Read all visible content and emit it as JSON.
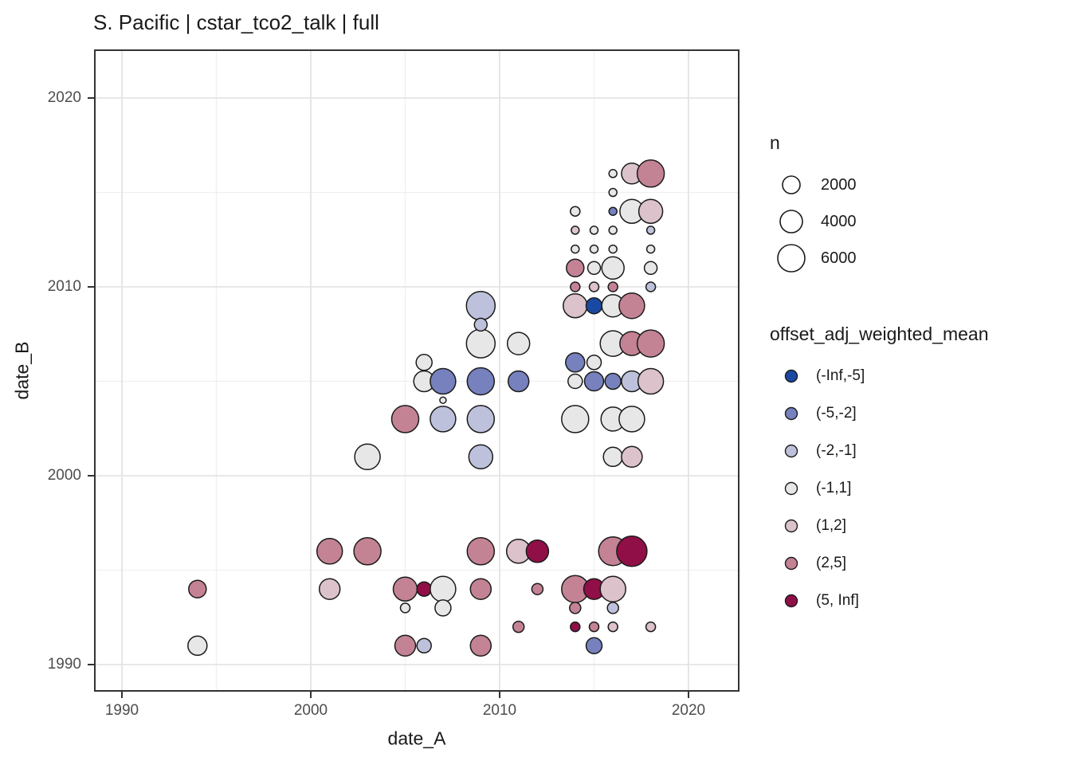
{
  "title": "S. Pacific | cstar_tco2_talk | full",
  "axes": {
    "x_label": "date_A",
    "y_label": "date_B"
  },
  "legend": {
    "size": {
      "title": "n",
      "entries": [
        {
          "label": "2000",
          "r": 11
        },
        {
          "label": "4000",
          "r": 14
        },
        {
          "label": "6000",
          "r": 17
        }
      ]
    },
    "color": {
      "title": "offset_adj_weighted_mean",
      "entries": [
        {
          "label": "(-Inf,-5]",
          "color": "#1a49a4"
        },
        {
          "label": "(-5,-2]",
          "color": "#7681bd"
        },
        {
          "label": "(-2,-1]",
          "color": "#bdc1db"
        },
        {
          "label": "(-1,1]",
          "color": "#e8e7e7"
        },
        {
          "label": "(1,2]",
          "color": "#dcc2ca"
        },
        {
          "label": "(2,5]",
          "color": "#c48394"
        },
        {
          "label": "(5, Inf]",
          "color": "#900f46"
        }
      ]
    }
  },
  "chart_data": {
    "type": "scatter",
    "subtype": "bubble",
    "title": "S. Pacific | cstar_tco2_talk | full",
    "xlabel": "date_A",
    "ylabel": "date_B",
    "x_ticks": [
      1990,
      2000,
      2010,
      2020
    ],
    "y_ticks": [
      2020,
      2010,
      2000,
      1990
    ],
    "x_minor": [
      1995,
      2005,
      2015
    ],
    "y_minor": [
      1995,
      2005,
      2015
    ],
    "xlim": [
      1988.5,
      2022.7
    ],
    "ylim": [
      1988.5,
      2022.6
    ],
    "grid": true,
    "legend_position": "right",
    "size_variable": "n",
    "color_variable": "offset_adj_weighted_mean",
    "color_bins": [
      {
        "label": "(-Inf,-5]",
        "color": "#1a49a4"
      },
      {
        "label": "(-5,-2]",
        "color": "#7681bd"
      },
      {
        "label": "(-2,-1]",
        "color": "#bdc1db"
      },
      {
        "label": "(-1,1]",
        "color": "#e8e7e7"
      },
      {
        "label": "(1,2]",
        "color": "#dcc2ca"
      },
      {
        "label": "(2,5]",
        "color": "#c48394"
      },
      {
        "label": "(5, Inf]",
        "color": "#900f46"
      }
    ],
    "point_fields": [
      "date_A",
      "date_B",
      "color_bin_index",
      "radius_px",
      "n_est"
    ],
    "points": [
      [
        2016,
        2016,
        3,
        5,
        400
      ],
      [
        2017,
        2016,
        4,
        13,
        2800
      ],
      [
        2018,
        2016,
        5,
        17,
        4800
      ],
      [
        2016,
        2015,
        3,
        5,
        400
      ],
      [
        2014,
        2014,
        3,
        6,
        600
      ],
      [
        2016,
        2014,
        1,
        5,
        400
      ],
      [
        2017,
        2014,
        3,
        15,
        3700
      ],
      [
        2018,
        2014,
        4,
        15,
        3700
      ],
      [
        2014,
        2013,
        4,
        5,
        400
      ],
      [
        2015,
        2013,
        3,
        5,
        400
      ],
      [
        2016,
        2013,
        3,
        5,
        400
      ],
      [
        2018,
        2013,
        2,
        5,
        400
      ],
      [
        2014,
        2012,
        3,
        5,
        400
      ],
      [
        2015,
        2012,
        3,
        5,
        400
      ],
      [
        2016,
        2012,
        3,
        5,
        400
      ],
      [
        2018,
        2012,
        3,
        5,
        400
      ],
      [
        2014,
        2011,
        5,
        11,
        2000
      ],
      [
        2015,
        2011,
        3,
        8,
        1100
      ],
      [
        2016,
        2011,
        3,
        14,
        3200
      ],
      [
        2018,
        2011,
        3,
        8,
        1100
      ],
      [
        2014,
        2010,
        5,
        6,
        600
      ],
      [
        2015,
        2010,
        4,
        6,
        600
      ],
      [
        2016,
        2010,
        5,
        6,
        600
      ],
      [
        2018,
        2010,
        2,
        6,
        600
      ],
      [
        2014,
        2009,
        4,
        15,
        3700
      ],
      [
        2015,
        2009,
        0,
        10,
        1700
      ],
      [
        2016,
        2009,
        3,
        14,
        3200
      ],
      [
        2017,
        2009,
        5,
        16,
        4200
      ],
      [
        2016,
        2007,
        3,
        16,
        4200
      ],
      [
        2017,
        2007,
        5,
        15,
        3700
      ],
      [
        2018,
        2007,
        5,
        17,
        4800
      ],
      [
        2014,
        2006,
        1,
        12,
        2400
      ],
      [
        2015,
        2006,
        3,
        9,
        1300
      ],
      [
        2014,
        2005,
        3,
        9,
        1300
      ],
      [
        2015,
        2005,
        1,
        12,
        2400
      ],
      [
        2016,
        2005,
        1,
        10,
        1700
      ],
      [
        2017,
        2005,
        2,
        13,
        2800
      ],
      [
        2018,
        2005,
        4,
        16,
        4200
      ],
      [
        2014,
        2003,
        3,
        17,
        4800
      ],
      [
        2016,
        2003,
        3,
        15,
        3700
      ],
      [
        2017,
        2003,
        3,
        16,
        4200
      ],
      [
        2016,
        2001,
        3,
        12,
        2400
      ],
      [
        2017,
        2001,
        4,
        13,
        2800
      ],
      [
        2009,
        2009,
        2,
        18,
        5400
      ],
      [
        2009,
        2008,
        2,
        8,
        1100
      ],
      [
        2009,
        2007,
        3,
        18,
        5400
      ],
      [
        2011,
        2007,
        3,
        14,
        3200
      ],
      [
        2006,
        2006,
        3,
        10,
        1700
      ],
      [
        2006,
        2005,
        3,
        13,
        2800
      ],
      [
        2007,
        2005,
        1,
        16,
        4200
      ],
      [
        2009,
        2005,
        1,
        17,
        4800
      ],
      [
        2011,
        2005,
        1,
        13,
        2800
      ],
      [
        2007,
        2004,
        3,
        4,
        300
      ],
      [
        2005,
        2003,
        5,
        17,
        4800
      ],
      [
        2007,
        2003,
        2,
        16,
        4200
      ],
      [
        2009,
        2003,
        2,
        17,
        4800
      ],
      [
        2003,
        2001,
        3,
        16,
        4200
      ],
      [
        2009,
        2001,
        2,
        15,
        3700
      ],
      [
        1994,
        1994,
        5,
        11,
        2000
      ],
      [
        1994,
        1991,
        3,
        12,
        2400
      ],
      [
        2001,
        1996,
        5,
        16,
        4200
      ],
      [
        2003,
        1996,
        5,
        17,
        4800
      ],
      [
        2001,
        1994,
        4,
        13,
        2800
      ],
      [
        2005,
        1994,
        5,
        15,
        3700
      ],
      [
        2006,
        1994,
        6,
        9,
        1300
      ],
      [
        2007,
        1994,
        3,
        16,
        4200
      ],
      [
        2005,
        1993,
        3,
        6,
        600
      ],
      [
        2007,
        1993,
        3,
        10,
        1700
      ],
      [
        2005,
        1991,
        5,
        13,
        2800
      ],
      [
        2006,
        1991,
        2,
        9,
        1300
      ],
      [
        2009,
        1996,
        5,
        17,
        4800
      ],
      [
        2009,
        1994,
        5,
        13,
        2800
      ],
      [
        2009,
        1991,
        5,
        13,
        2800
      ],
      [
        2011,
        1996,
        4,
        15,
        3700
      ],
      [
        2012,
        1996,
        6,
        14,
        3200
      ],
      [
        2012,
        1994,
        5,
        7,
        800
      ],
      [
        2011,
        1992,
        5,
        7,
        800
      ],
      [
        2014,
        1994,
        5,
        17,
        4800
      ],
      [
        2015,
        1994,
        6,
        13,
        2800
      ],
      [
        2016,
        1994,
        4,
        16,
        4200
      ],
      [
        2014,
        1993,
        5,
        7,
        800
      ],
      [
        2016,
        1993,
        2,
        7,
        800
      ],
      [
        2014,
        1992,
        6,
        6,
        600
      ],
      [
        2015,
        1992,
        5,
        6,
        600
      ],
      [
        2016,
        1992,
        4,
        6,
        600
      ],
      [
        2018,
        1992,
        4,
        6,
        600
      ],
      [
        2015,
        1991,
        1,
        10,
        1700
      ],
      [
        2016,
        1996,
        5,
        18,
        5400
      ],
      [
        2017,
        1996,
        6,
        19,
        6000
      ]
    ]
  }
}
